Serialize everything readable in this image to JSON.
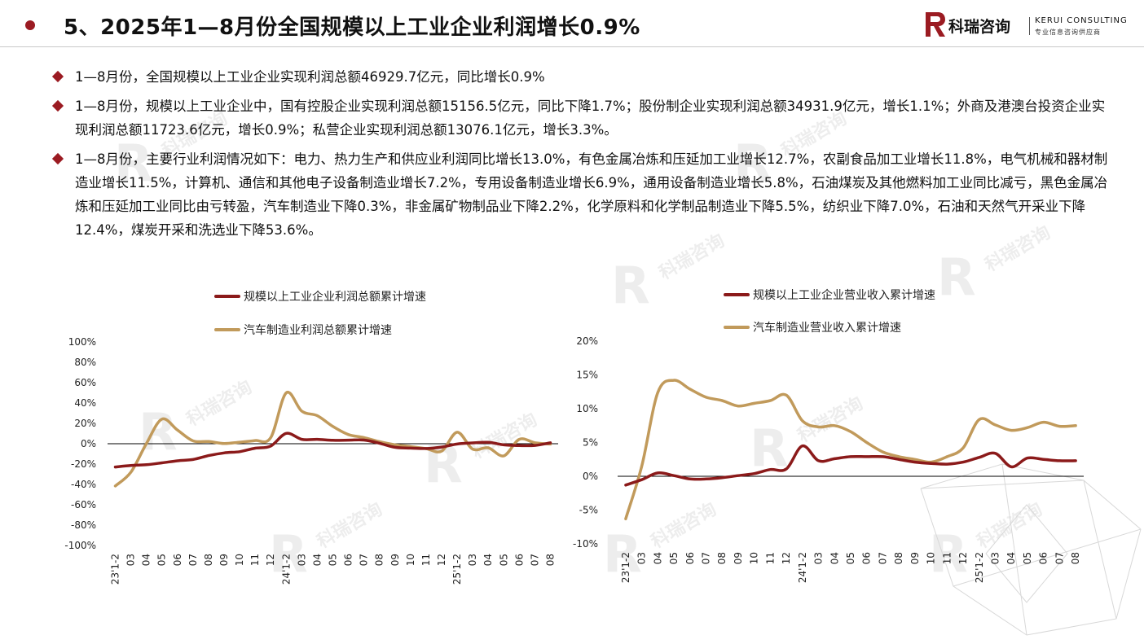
{
  "header": {
    "title": "5、2025年1—8月份全国规模以上工业企业利润增长0.9%",
    "brand_cn": "科瑞咨询",
    "brand_en": "KERUI CONSULTING",
    "brand_sub": "专业信息咨询供应商",
    "accent_color": "#9b1b22"
  },
  "bullets": [
    "1—8月份，全国规模以上工业企业实现利润总额46929.7亿元，同比增长0.9%",
    "1—8月份，规模以上工业企业中，国有控股企业实现利润总额15156.5亿元，同比下降1.7%；股份制企业实现利润总额34931.9亿元，增长1.1%；外商及港澳台投资企业实现利润总额11723.6亿元，增长0.9%；私营企业实现利润总额13076.1亿元，增长3.3%。",
    "1—8月份，主要行业利润情况如下：电力、热力生产和供应业利润同比增长13.0%，有色金属冶炼和压延加工业增长12.7%，农副食品加工业增长11.8%，电气机械和器材制造业增长11.5%，计算机、通信和其他电子设备制造业增长7.2%，专用设备制造业增长6.9%，通用设备制造业增长5.8%，石油煤炭及其他燃料加工业同比减亏，黑色金属冶炼和压延加工业同比由亏转盈，汽车制造业下降0.3%，非金属矿物制品业下降2.2%，化学原料和化学制品制造业下降5.5%，纺织业下降7.0%，石油和天然气开采业下降12.4%，煤炭开采和洗选业下降53.6%。"
  ],
  "watermark": "科瑞咨询",
  "chart_data": [
    {
      "type": "line",
      "categories": [
        "23'1-2",
        "03",
        "04",
        "05",
        "06",
        "07",
        "08",
        "09",
        "10",
        "11",
        "12",
        "24'1-2",
        "03",
        "04",
        "05",
        "06",
        "07",
        "08",
        "09",
        "10",
        "11",
        "12",
        "25'1-2",
        "03",
        "04",
        "05",
        "06",
        "07",
        "08"
      ],
      "series": [
        {
          "name": "规模以上工业企业利润总额累计增速",
          "color": "#8b1a1a",
          "values": [
            -22.9,
            -21.4,
            -20.6,
            -18.8,
            -16.8,
            -15.5,
            -11.7,
            -9.0,
            -7.8,
            -4.4,
            -2.3,
            10.2,
            4.3,
            4.3,
            3.4,
            3.5,
            3.6,
            0.5,
            -3.5,
            -4.3,
            -4.7,
            -3.3,
            -0.3,
            0.8,
            1.4,
            -1.1,
            -1.8,
            -1.7,
            0.9
          ]
        },
        {
          "name": "汽车制造业利润总额累计增速",
          "color": "#c19a5b",
          "values": [
            -41.5,
            -28.0,
            0.2,
            24.2,
            13.4,
            2.8,
            2.2,
            0.2,
            1.5,
            3.1,
            5.9,
            50.0,
            32.0,
            27.5,
            17.0,
            9.0,
            6.0,
            2.0,
            -1.0,
            -2.8,
            -4.8,
            -7.3,
            11.3,
            -5.3,
            -4.0,
            -11.9,
            4.3,
            1.0,
            -0.3
          ]
        }
      ],
      "ylim": [
        -100,
        100
      ],
      "yticks": [
        "100%",
        "80%",
        "60%",
        "40%",
        "20%",
        "0%",
        "-20%",
        "-40%",
        "-60%",
        "-80%",
        "-100%"
      ],
      "legend": "top-left"
    },
    {
      "type": "line",
      "categories": [
        "23'1-2",
        "03",
        "04",
        "05",
        "06",
        "07",
        "08",
        "09",
        "10",
        "11",
        "12",
        "24'1-2",
        "03",
        "04",
        "05",
        "06",
        "07",
        "08",
        "09",
        "10",
        "11",
        "12",
        "25'1-2",
        "03",
        "04",
        "05",
        "06",
        "07",
        "08"
      ],
      "series": [
        {
          "name": "规模以上工业企业营业收入累计增速",
          "color": "#8b1a1a",
          "values": [
            -1.3,
            -0.5,
            0.5,
            0.1,
            -0.4,
            -0.4,
            -0.2,
            0.1,
            0.4,
            1.0,
            1.1,
            4.5,
            2.3,
            2.6,
            2.9,
            2.9,
            2.9,
            2.5,
            2.1,
            1.9,
            1.8,
            2.1,
            2.8,
            3.4,
            1.4,
            2.7,
            2.5,
            2.3,
            2.3
          ]
        },
        {
          "name": "汽车制造业营业收入累计增速",
          "color": "#c19a5b",
          "values": [
            -6.3,
            1.5,
            12.4,
            14.2,
            12.9,
            11.7,
            11.2,
            10.4,
            10.8,
            11.2,
            12.0,
            8.2,
            7.3,
            7.5,
            6.6,
            5.0,
            3.6,
            2.9,
            2.5,
            2.1,
            2.9,
            4.2,
            8.4,
            7.6,
            6.8,
            7.2,
            8.0,
            7.4,
            7.5
          ]
        }
      ],
      "ylim": [
        -10,
        20
      ],
      "yticks": [
        "20%",
        "15%",
        "10%",
        "5%",
        "0%",
        "-5%",
        "-10%"
      ],
      "legend": "top-left"
    }
  ]
}
